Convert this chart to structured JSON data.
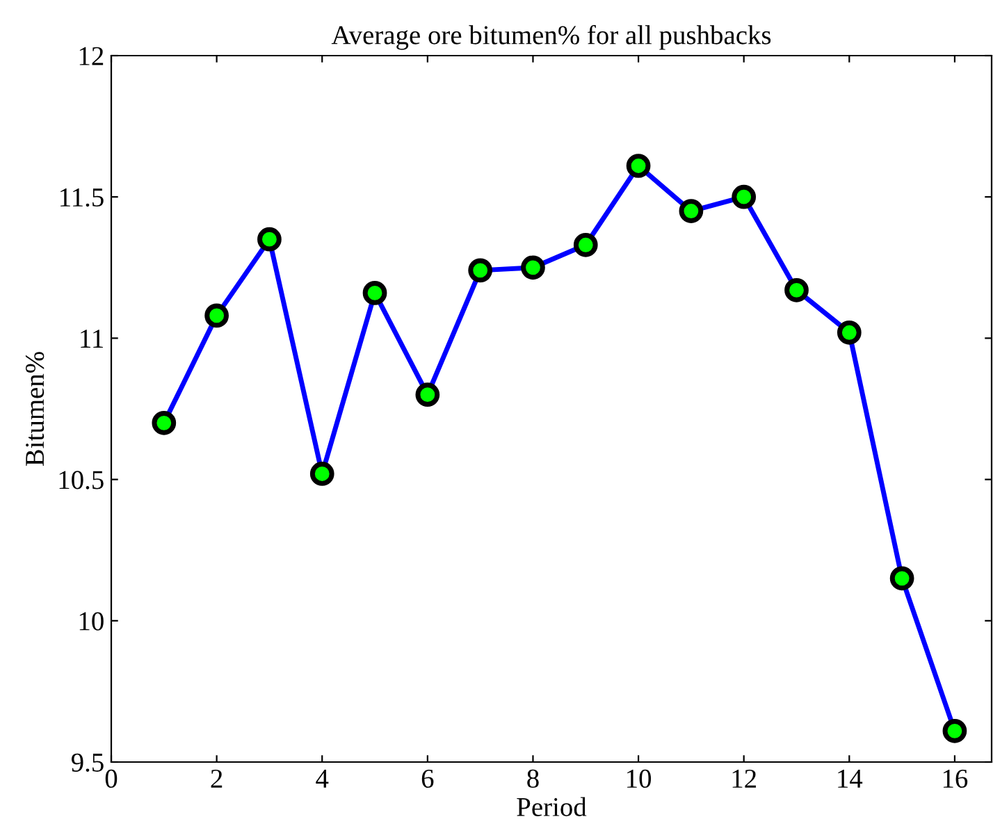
{
  "chart_data": {
    "type": "line",
    "title": "Average ore bitumen% for all pushbacks",
    "xlabel": "Period",
    "ylabel": "Bitumen%",
    "x": [
      1,
      2,
      3,
      4,
      5,
      6,
      7,
      8,
      9,
      10,
      11,
      12,
      13,
      14,
      15,
      16
    ],
    "series": [
      {
        "color": "#0000ff",
        "values": [
          10.7,
          11.08,
          11.35,
          10.52,
          11.16,
          10.8,
          11.24,
          11.25,
          11.33,
          11.61,
          11.45,
          11.5,
          11.17,
          11.02,
          10.15,
          9.61
        ]
      }
    ],
    "marker": "circle",
    "line_style": "solid",
    "grid": false,
    "legend": false,
    "xlim": [
      0,
      16.7
    ],
    "xticks": [
      0,
      2,
      4,
      6,
      8,
      10,
      12,
      14,
      16
    ],
    "ylim": [
      9.5,
      12
    ],
    "yticks": [
      9.5,
      10,
      10.5,
      11,
      11.5,
      12
    ]
  }
}
